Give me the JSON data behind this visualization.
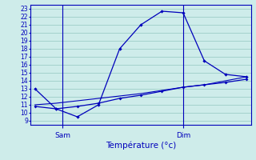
{
  "bg_color": "#ceecea",
  "grid_color": "#9eccc8",
  "line_color": "#0000bb",
  "line1_x": [
    0,
    1,
    2,
    3,
    4,
    5,
    6,
    7,
    8,
    9,
    10
  ],
  "line1_y": [
    13.0,
    10.5,
    9.5,
    11.0,
    18.0,
    21.0,
    22.7,
    22.5,
    16.5,
    14.8,
    14.5
  ],
  "line2_x": [
    0,
    1,
    2,
    3,
    4,
    5,
    6,
    7,
    8,
    9,
    10
  ],
  "line2_y": [
    10.8,
    10.5,
    10.8,
    11.2,
    11.8,
    12.2,
    12.7,
    13.2,
    13.5,
    13.8,
    14.2
  ],
  "line3_x": [
    0,
    1,
    2,
    3,
    4,
    5,
    6,
    7,
    8,
    9,
    10
  ],
  "line3_y": [
    11.0,
    11.2,
    11.5,
    11.8,
    12.1,
    12.4,
    12.8,
    13.2,
    13.5,
    14.0,
    14.5
  ],
  "ylim": [
    8.5,
    23.5
  ],
  "xlim": [
    -0.2,
    10.2
  ],
  "yticks": [
    9,
    10,
    11,
    12,
    13,
    14,
    15,
    16,
    17,
    18,
    19,
    20,
    21,
    22,
    23
  ],
  "sam_x": 1.3,
  "dim_x": 7.0,
  "xlabel": "Température (°c)"
}
